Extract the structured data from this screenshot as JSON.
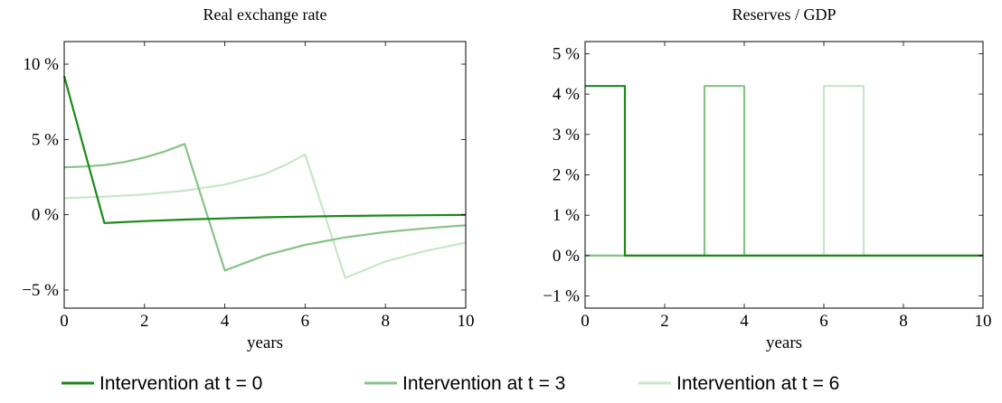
{
  "chart_data": [
    {
      "type": "line",
      "title": "Real exchange rate",
      "xlabel": "years",
      "ylabel": "",
      "xlim": [
        0,
        10
      ],
      "ylim": [
        -6.2,
        11.5
      ],
      "xticks": [
        0,
        2,
        4,
        6,
        8,
        10
      ],
      "xtick_labels": [
        "0",
        "2",
        "4",
        "6",
        "8",
        "10"
      ],
      "yticks": [
        -5,
        0,
        5,
        10
      ],
      "ytick_labels": [
        "−5 %",
        "0 %",
        "5 %",
        "10 %"
      ],
      "grid": false,
      "series": [
        {
          "name": "Intervention at t = 0",
          "color": "#1a8a1a",
          "x": [
            0,
            1,
            2,
            3,
            4,
            5,
            6,
            7,
            8,
            9,
            10
          ],
          "y": [
            9.2,
            -0.55,
            -0.42,
            -0.32,
            -0.24,
            -0.17,
            -0.12,
            -0.08,
            -0.05,
            -0.03,
            -0.01
          ]
        },
        {
          "name": "Intervention at t = 3",
          "color": "#86c486",
          "x": [
            0,
            0.5,
            1,
            1.5,
            2,
            2.5,
            3,
            4,
            5,
            6,
            7,
            8,
            9,
            10
          ],
          "y": [
            3.15,
            3.2,
            3.3,
            3.5,
            3.8,
            4.2,
            4.7,
            -3.7,
            -2.7,
            -2.0,
            -1.5,
            -1.15,
            -0.9,
            -0.7
          ]
        },
        {
          "name": "Intervention at t = 6",
          "color": "#c8e6c8",
          "x": [
            0,
            1,
            2,
            3,
            4,
            5,
            5.5,
            6,
            7,
            8,
            9,
            10
          ],
          "y": [
            1.1,
            1.2,
            1.35,
            1.6,
            2.0,
            2.7,
            3.3,
            4.0,
            -4.2,
            -3.1,
            -2.4,
            -1.85
          ]
        }
      ]
    },
    {
      "type": "line",
      "title": "Reserves / GDP",
      "xlabel": "years",
      "ylabel": "",
      "xlim": [
        0,
        10
      ],
      "ylim": [
        -1.3,
        5.3
      ],
      "xticks": [
        0,
        2,
        4,
        6,
        8,
        10
      ],
      "xtick_labels": [
        "0",
        "2",
        "4",
        "6",
        "8",
        "10"
      ],
      "yticks": [
        -1,
        0,
        1,
        2,
        3,
        4,
        5
      ],
      "ytick_labels": [
        "−1 %",
        "0 %",
        "1 %",
        "2 %",
        "3 %",
        "4 %",
        "5 %"
      ],
      "grid": false,
      "series": [
        {
          "name": "Intervention at t = 0",
          "color": "#1a8a1a",
          "x": [
            0,
            1,
            1,
            10
          ],
          "y": [
            4.2,
            4.2,
            0,
            0
          ]
        },
        {
          "name": "Intervention at t = 3",
          "color": "#86c486",
          "x": [
            0,
            3,
            3,
            4,
            4,
            10
          ],
          "y": [
            0,
            0,
            4.2,
            4.2,
            0,
            0
          ]
        },
        {
          "name": "Intervention at t = 6",
          "color": "#c8e6c8",
          "x": [
            0,
            6,
            6,
            7,
            7,
            10
          ],
          "y": [
            0,
            0,
            4.2,
            4.2,
            0,
            0
          ]
        }
      ]
    }
  ],
  "legend": {
    "position": "bottom",
    "items": [
      {
        "label": "Intervention at t = 0",
        "color": "#1a8a1a"
      },
      {
        "label": "Intervention at t = 3",
        "color": "#86c486"
      },
      {
        "label": "Intervention at t = 6",
        "color": "#c8e6c8"
      }
    ]
  }
}
